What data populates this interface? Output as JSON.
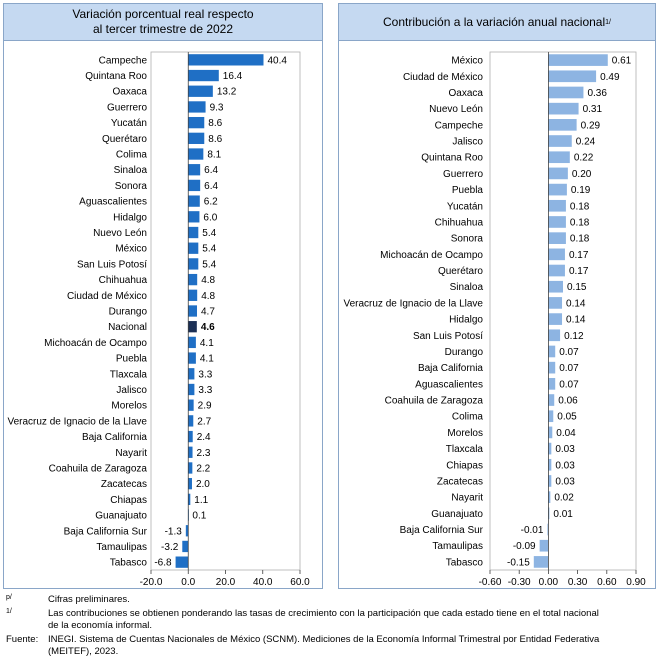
{
  "chart_data": [
    {
      "type": "bar",
      "orientation": "horizontal",
      "title": "Variación porcentual real respecto\nal tercer trimestre de 2022",
      "categories": [
        "Campeche",
        "Quintana Roo",
        "Oaxaca",
        "Guerrero",
        "Yucatán",
        "Querétaro",
        "Colima",
        "Sinaloa",
        "Sonora",
        "Aguascalientes",
        "Hidalgo",
        "Nuevo León",
        "México",
        "San Luis Potosí",
        "Chihuahua",
        "Ciudad de México",
        "Durango",
        "Nacional",
        "Michoacán de Ocampo",
        "Puebla",
        "Tlaxcala",
        "Jalisco",
        "Morelos",
        "Veracruz de Ignacio de la Llave",
        "Baja California",
        "Nayarit",
        "Coahuila de Zaragoza",
        "Zacatecas",
        "Chiapas",
        "Guanajuato",
        "Baja California Sur",
        "Tamaulipas",
        "Tabasco"
      ],
      "values": [
        40.4,
        16.4,
        13.2,
        9.3,
        8.6,
        8.6,
        8.1,
        6.4,
        6.4,
        6.2,
        6.0,
        5.4,
        5.4,
        5.4,
        4.8,
        4.8,
        4.7,
        4.6,
        4.1,
        4.1,
        3.3,
        3.3,
        2.9,
        2.7,
        2.4,
        2.3,
        2.2,
        2.0,
        1.1,
        0.1,
        -1.3,
        -3.2,
        -6.8
      ],
      "value_labels": [
        "40.4",
        "16.4",
        "13.2",
        "9.3",
        "8.6",
        "8.6",
        "8.1",
        "6.4",
        "6.4",
        "6.2",
        "6.0",
        "5.4",
        "5.4",
        "5.4",
        "4.8",
        "4.8",
        "4.7",
        "4.6",
        "4.1",
        "4.1",
        "3.3",
        "3.3",
        "2.9",
        "2.7",
        "2.4",
        "2.3",
        "2.2",
        "2.0",
        "1.1",
        "0.1",
        "-1.3",
        "-3.2",
        "-6.8"
      ],
      "highlight": "Nacional",
      "xlim": [
        -20,
        60
      ],
      "xticks": [
        "-20.0",
        "0.0",
        "20.0",
        "40.0",
        "60.0"
      ],
      "bar_color": "#1f6fc5",
      "highlight_color": "#1b2f55"
    },
    {
      "type": "bar",
      "orientation": "horizontal",
      "title": "Contribución a la variación anual nacional",
      "title_sup": "1/",
      "categories": [
        "México",
        "Ciudad de México",
        "Oaxaca",
        "Nuevo León",
        "Campeche",
        "Jalisco",
        "Quintana Roo",
        "Guerrero",
        "Puebla",
        "Yucatán",
        "Chihuahua",
        "Sonora",
        "Michoacán de Ocampo",
        "Querétaro",
        "Sinaloa",
        "Veracruz de Ignacio de la Llave",
        "Hidalgo",
        "San Luis Potosí",
        "Durango",
        "Baja California",
        "Aguascalientes",
        "Coahuila de Zaragoza",
        "Colima",
        "Morelos",
        "Tlaxcala",
        "Chiapas",
        "Zacatecas",
        "Nayarit",
        "Guanajuato",
        "Baja California Sur",
        "Tamaulipas",
        "Tabasco"
      ],
      "values": [
        0.61,
        0.49,
        0.36,
        0.31,
        0.29,
        0.24,
        0.22,
        0.2,
        0.19,
        0.18,
        0.18,
        0.18,
        0.17,
        0.17,
        0.15,
        0.14,
        0.14,
        0.12,
        0.07,
        0.07,
        0.07,
        0.06,
        0.05,
        0.04,
        0.03,
        0.03,
        0.03,
        0.02,
        0.01,
        -0.01,
        -0.09,
        -0.15
      ],
      "value_labels": [
        "0.61",
        "0.49",
        "0.36",
        "0.31",
        "0.29",
        "0.24",
        "0.22",
        "0.20",
        "0.19",
        "0.18",
        "0.18",
        "0.18",
        "0.17",
        "0.17",
        "0.15",
        "0.14",
        "0.14",
        "0.12",
        "0.07",
        "0.07",
        "0.07",
        "0.06",
        "0.05",
        "0.04",
        "0.03",
        "0.03",
        "0.03",
        "0.02",
        "0.01",
        "-0.01",
        "-0.09",
        "-0.15"
      ],
      "xlim": [
        -0.6,
        0.9
      ],
      "xticks": [
        "-0.60",
        "-0.30",
        "0.00",
        "0.30",
        "0.60",
        "0.90"
      ],
      "bar_color": "#8db4e2"
    }
  ],
  "notes": {
    "p_mark": "p/",
    "p_text": "Cifras preliminares.",
    "one_mark": "1/",
    "one_text_1": "Las contribuciones se obtienen ponderando las tasas de crecimiento con la participación que cada estado tiene en el total nacional",
    "one_text_2": "de la economía informal.",
    "source_label": "Fuente:",
    "source_text_1": "INEGI. Sistema de Cuentas Nacionales de México (SCNM). Mediciones de la Economía Informal Trimestral por Entidad Federativa",
    "source_text_2": "(MEITEF), 2023."
  }
}
